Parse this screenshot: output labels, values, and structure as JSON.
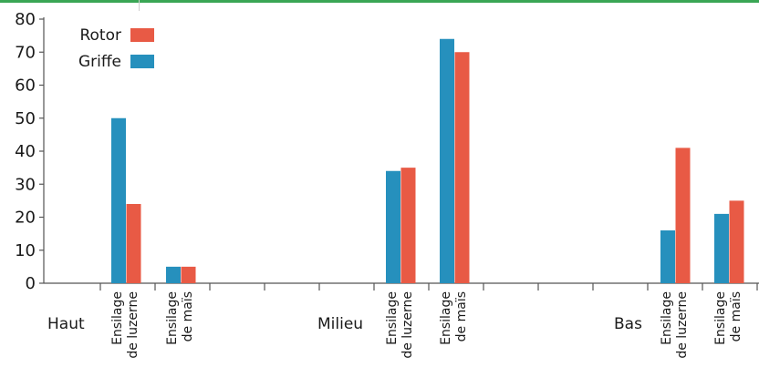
{
  "colors": {
    "top_rule": "#3aa655",
    "axis": "#555555",
    "rotor": "#e85a45",
    "griffe": "#2690bd"
  },
  "chart_data": {
    "type": "bar",
    "title": "",
    "xlabel": "",
    "ylabel": "",
    "ylim": [
      0,
      80
    ],
    "y_ticks": [
      "0",
      "10",
      "20",
      "30",
      "40",
      "50",
      "60",
      "70",
      "80"
    ],
    "legend": {
      "placement": "top-left",
      "entries": [
        "Rotor",
        "Griffe"
      ]
    },
    "groups": [
      {
        "label": "Haut",
        "categories": [
          {
            "line1": "Ensilage",
            "line2": "de luzerne",
            "griffe": 50,
            "rotor": 24
          },
          {
            "line1": "Ensilage",
            "line2": "de maïs",
            "griffe": 5,
            "rotor": 5
          }
        ]
      },
      {
        "label": "Milieu",
        "categories": [
          {
            "line1": "Ensilage",
            "line2": "de luzerne",
            "griffe": 34,
            "rotor": 35
          },
          {
            "line1": "Ensilage",
            "line2": "de maïs",
            "griffe": 74,
            "rotor": 70
          }
        ]
      },
      {
        "label": "Bas",
        "categories": [
          {
            "line1": "Ensilage",
            "line2": "de luzerne",
            "griffe": 16,
            "rotor": 41
          },
          {
            "line1": "Ensilage",
            "line2": "de maïs",
            "griffe": 21,
            "rotor": 25
          }
        ]
      }
    ]
  }
}
